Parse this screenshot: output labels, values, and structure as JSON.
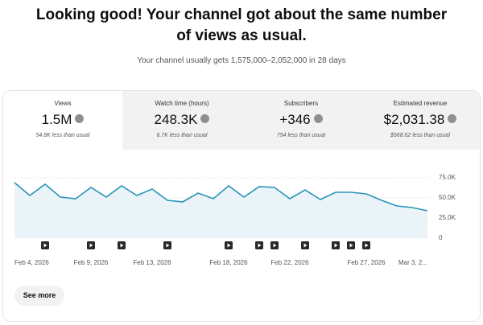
{
  "header": {
    "title": "Looking good! Your channel got about the same number of views as usual.",
    "subtitle": "Your channel usually gets 1,575,000–2,052,000 in 28 days"
  },
  "metrics": [
    {
      "label": "Views",
      "value": "1.5M",
      "delta": "54.8K less than usual"
    },
    {
      "label": "Watch time (hours)",
      "value": "248.3K",
      "delta": "6.7K less than usual"
    },
    {
      "label": "Subscribers",
      "value": "+346",
      "delta": "754 less than usual"
    },
    {
      "label": "Estimated revenue",
      "value": "$2,031.38",
      "delta": "$568.62 less than usual"
    }
  ],
  "chart_data": {
    "type": "line",
    "color": "#2a93b8",
    "categories": [
      "Feb 4, 2026",
      null,
      null,
      null,
      null,
      "Feb 9, 2026",
      null,
      null,
      null,
      "Feb 13, 2026",
      null,
      null,
      null,
      null,
      "Feb 18, 2026",
      null,
      null,
      null,
      "Feb 22, 2026",
      null,
      null,
      null,
      null,
      "Feb 27, 2026",
      null,
      null,
      null,
      "Mar 3, 2..."
    ],
    "values": [
      69000,
      53000,
      67000,
      51000,
      49000,
      63000,
      51000,
      65000,
      53000,
      61000,
      47000,
      45000,
      56000,
      49000,
      65000,
      51000,
      64000,
      63000,
      49000,
      60000,
      48000,
      57000,
      57000,
      55000,
      47000,
      40000,
      38000,
      34000
    ],
    "ylim": [
      0,
      85000
    ],
    "yticks": [
      0,
      {
        "value": 25000,
        "label": "25.0K"
      },
      {
        "value": 50000,
        "label": "50.0K"
      },
      {
        "value": 75000,
        "label": "75.0K"
      }
    ],
    "grid": true
  },
  "button": "See more"
}
